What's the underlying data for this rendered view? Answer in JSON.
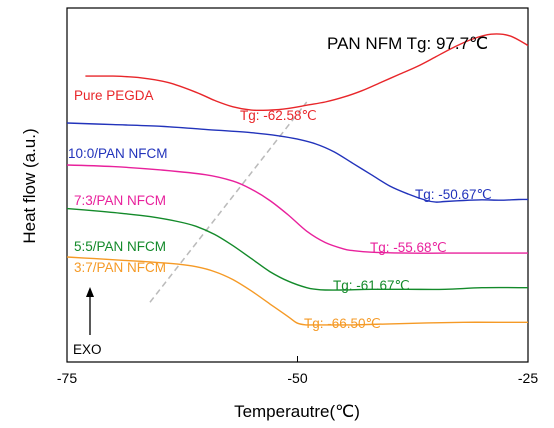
{
  "chart_data": {
    "type": "line",
    "title": "",
    "annotation": "PAN NFM Tg: 97.7℃",
    "xlabel": "Temperautre(℃)",
    "ylabel": "Heat flow (a.u.)",
    "xlim": [
      -75,
      -25
    ],
    "xticks": [
      "-75",
      "-50",
      "-25"
    ],
    "y_axis_ticks": false,
    "ylim": [
      0,
      100
    ],
    "exo_label": "EXO",
    "series": [
      {
        "name": "Pure PEGDA",
        "color": "#e8262a",
        "tg_label": "Tg: -62.58℃",
        "x": [
          -73,
          -70,
          -67,
          -64,
          -61,
          -59,
          -57,
          -55,
          -53,
          -51,
          -49,
          -47,
          -45,
          -43,
          -41,
          -39,
          -37,
          -35,
          -33,
          -31,
          -29,
          -27,
          -25
        ],
        "y": [
          82,
          82,
          81.5,
          80,
          77,
          74.5,
          72.5,
          71.5,
          71.5,
          72,
          73,
          74,
          75.5,
          77.5,
          80,
          82.5,
          85,
          88,
          91,
          93.5,
          95,
          94.5,
          91.5
        ]
      },
      {
        "name": "10:0/PAN NFCM",
        "color": "#2233bb",
        "tg_label": "Tg: -50.67℃",
        "x": [
          -75,
          -70,
          -65,
          -60,
          -55,
          -52,
          -50,
          -48,
          -46,
          -44,
          -42,
          -40,
          -38,
          -36,
          -35,
          -34,
          -32,
          -30,
          -28,
          -26,
          -25
        ],
        "y": [
          67.5,
          67,
          66.5,
          65.5,
          64.5,
          63.5,
          62.5,
          61,
          58.5,
          55,
          51.5,
          48,
          45.5,
          43.5,
          43,
          43.2,
          43.5,
          43.7,
          43.6,
          43.8,
          43.8
        ]
      },
      {
        "name": "7:3/PAN NFCM",
        "color": "#e8219c",
        "tg_label": "Tg: -55.68℃",
        "x": [
          -75,
          -70,
          -65,
          -60,
          -57,
          -55,
          -53,
          -51,
          -49,
          -47,
          -45,
          -44,
          -42,
          -38,
          -34,
          -30,
          -25
        ],
        "y": [
          54.5,
          54,
          53,
          51.5,
          49.5,
          47,
          43.5,
          39,
          34,
          30.5,
          28.5,
          28,
          27.5,
          27.2,
          27.2,
          27.2,
          27.2
        ]
      },
      {
        "name": "5:5/PAN NFCM",
        "color": "#138a2a",
        "tg_label": "Tg: -61.67℃",
        "x": [
          -75,
          -72,
          -69,
          -66,
          -63,
          -61,
          -59,
          -57,
          -55,
          -53,
          -51,
          -49,
          -48,
          -47,
          -45,
          -42,
          -38,
          -34,
          -30,
          -25
        ],
        "y": [
          41,
          40.3,
          39.5,
          38.5,
          37,
          35.5,
          33,
          29.5,
          25.5,
          21.5,
          18.5,
          16.5,
          16,
          15.8,
          15.8,
          16,
          16,
          16,
          16.5,
          16.5
        ]
      },
      {
        "name": "3:7/PAN NFCM",
        "color": "#f59a26",
        "tg_label": "Tg: -66.50℃",
        "x": [
          -75,
          -72,
          -69,
          -66,
          -63,
          -61,
          -59,
          -57,
          -55,
          -53,
          -51,
          -50,
          -49,
          -48,
          -47,
          -44,
          -40,
          -36,
          -32,
          -28,
          -25
        ],
        "y": [
          26,
          25.5,
          25,
          24.5,
          23.8,
          23,
          21.5,
          19,
          15.5,
          11.5,
          7.5,
          5.5,
          5,
          5,
          5,
          5,
          5.3,
          5.6,
          5.8,
          5.8,
          5.8
        ]
      }
    ],
    "guide_line": {
      "style": "dashed",
      "color": "#bbbbbb",
      "from": [
        -66,
        12
      ],
      "to": [
        -49,
        74
      ]
    },
    "grid": false,
    "legend": "none"
  }
}
